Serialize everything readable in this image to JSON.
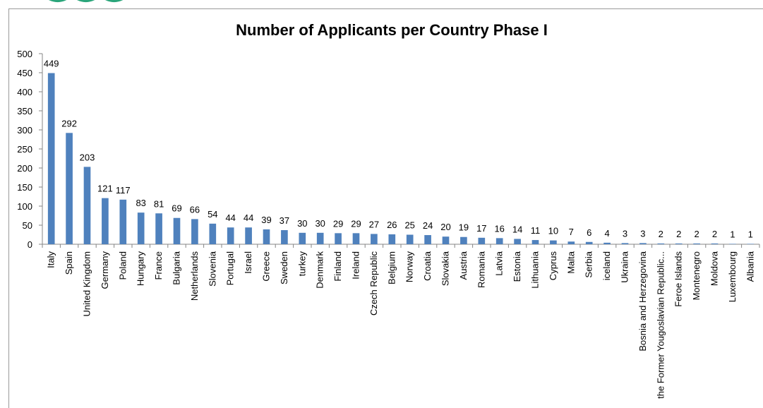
{
  "chart_data": {
    "type": "bar",
    "title": "Number of Applicants per Country Phase I",
    "xlabel": "",
    "ylabel": "",
    "ylim": [
      0,
      500
    ],
    "yticks": [
      0,
      50,
      100,
      150,
      200,
      250,
      300,
      350,
      400,
      450,
      500
    ],
    "grid": false,
    "legend": "none",
    "bar_color": "#4f81bd",
    "categories": [
      "Italy",
      "Spain",
      "United Kingdom",
      "Germany",
      "Poland",
      "Hungary",
      "France",
      "Bulgaria",
      "Netherlands",
      "Slovenia",
      "Portugal",
      "Israel",
      "Greece",
      "Sweden",
      "turkey",
      "Denmark",
      "Finland",
      "Ireland",
      "Czech Republic",
      "Belgium",
      "Norway",
      "Croatia",
      "Slovakia",
      "Austria",
      "Romania",
      "Latvia",
      "Estonia",
      "Lithuania",
      "Cyprus",
      "Malta",
      "Serbia",
      "iceland",
      "Ukraina",
      "Bosnia and Herzegovina",
      "the Former Yougoslavian Republic...",
      "Feroe Islands",
      "Montenegro",
      "Moldova",
      "Luxembourg",
      "Albania"
    ],
    "values": [
      449,
      292,
      203,
      121,
      117,
      83,
      81,
      69,
      66,
      54,
      44,
      44,
      39,
      37,
      30,
      30,
      29,
      29,
      27,
      26,
      25,
      24,
      20,
      19,
      17,
      16,
      14,
      11,
      10,
      7,
      6,
      4,
      3,
      3,
      2,
      2,
      2,
      2,
      1,
      1
    ]
  }
}
